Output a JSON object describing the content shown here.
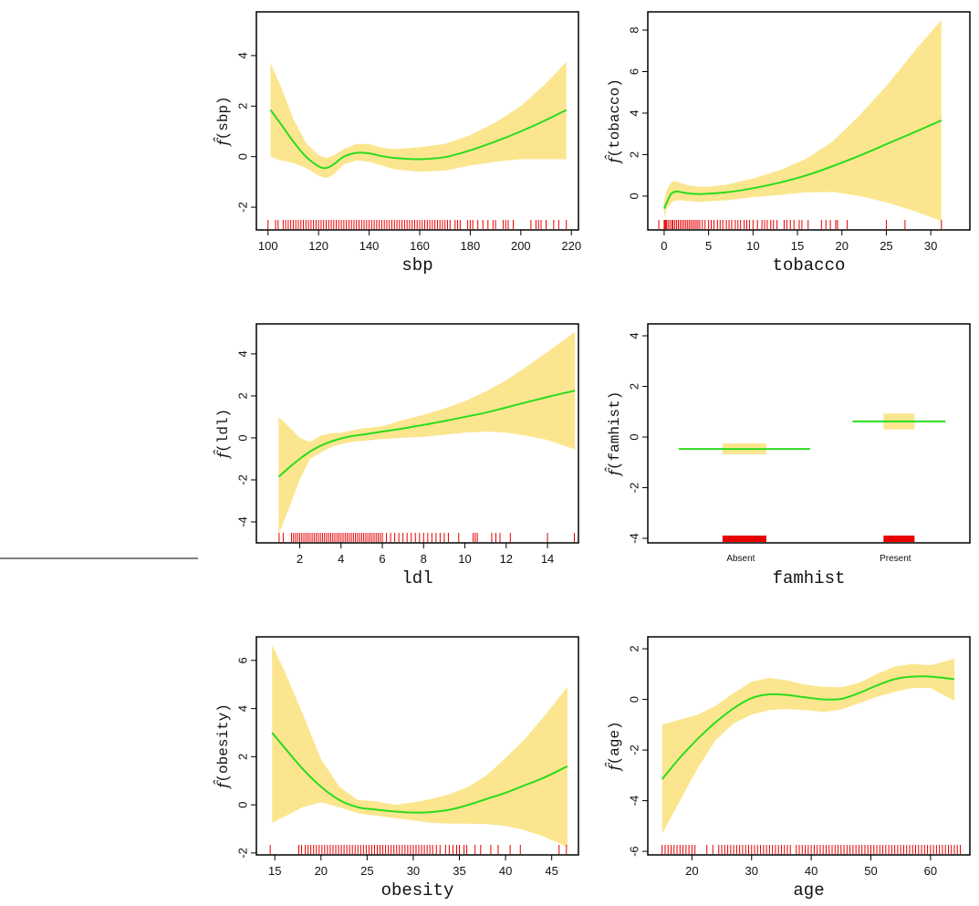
{
  "figure": {
    "divider_visible": true
  },
  "colors": {
    "band": "#FBE68F",
    "curve": "#2BDB1E",
    "rug": "#E80000",
    "frame": "#000000"
  },
  "chart_data": [
    {
      "id": "sbp",
      "type": "line",
      "title": "",
      "xlabel": "sbp",
      "ylabel_var": "sbp",
      "ylabel": "f̂(sbp)",
      "xlim": [
        95.4,
        222.8
      ],
      "ylim": [
        -2.9,
        5.73
      ],
      "xticks": [
        100,
        120,
        140,
        160,
        180,
        200,
        220
      ],
      "yticks": [
        -2,
        0,
        2,
        4
      ],
      "x": [
        101,
        105,
        110,
        115,
        120,
        123,
        126,
        130,
        135,
        140,
        145,
        150,
        160,
        170,
        180,
        190,
        200,
        210,
        218
      ],
      "fit": [
        1.85,
        1.3,
        0.6,
        0.0,
        -0.38,
        -0.45,
        -0.3,
        0.0,
        0.15,
        0.13,
        0.02,
        -0.05,
        -0.1,
        -0.02,
        0.25,
        0.6,
        1.0,
        1.45,
        1.85
      ],
      "lower": [
        0.0,
        -0.15,
        -0.25,
        -0.45,
        -0.75,
        -0.85,
        -0.7,
        -0.3,
        -0.15,
        -0.2,
        -0.35,
        -0.5,
        -0.6,
        -0.55,
        -0.35,
        -0.2,
        -0.1,
        -0.1,
        -0.1
      ],
      "upper": [
        3.7,
        2.8,
        1.5,
        0.55,
        0.05,
        -0.05,
        0.05,
        0.3,
        0.5,
        0.5,
        0.35,
        0.3,
        0.38,
        0.5,
        0.85,
        1.35,
        2.0,
        2.9,
        3.75
      ],
      "rug": [
        100,
        103,
        104,
        106,
        107,
        108,
        109,
        110,
        111,
        112,
        113,
        114,
        115,
        116,
        117,
        118,
        119,
        120,
        121,
        122,
        123,
        124,
        125,
        126,
        127,
        128,
        129,
        130,
        131,
        132,
        133,
        134,
        135,
        136,
        137,
        138,
        139,
        140,
        141,
        142,
        143,
        144,
        145,
        146,
        147,
        148,
        149,
        150,
        151,
        152,
        153,
        154,
        155,
        156,
        157,
        158,
        159,
        160,
        161,
        162,
        163,
        164,
        165,
        166,
        167,
        168,
        169,
        170,
        171,
        172,
        174,
        175,
        176,
        179,
        180,
        181,
        183,
        185,
        187,
        189,
        190,
        193,
        194,
        195,
        197,
        204,
        206,
        207,
        208,
        210,
        213,
        215,
        218
      ]
    },
    {
      "id": "tobacco",
      "type": "line",
      "title": "",
      "xlabel": "tobacco",
      "ylabel_var": "tobacco",
      "ylabel": "f̂(tobacco)",
      "xlim": [
        -1.84,
        34.4
      ],
      "ylim": [
        -1.63,
        8.88
      ],
      "xticks": [
        0,
        5,
        10,
        15,
        20,
        25,
        30
      ],
      "yticks": [
        0,
        2,
        4,
        6,
        8
      ],
      "x": [
        0,
        0.3,
        0.7,
        1.0,
        1.5,
        2,
        3,
        4,
        5,
        7,
        10,
        13,
        16,
        19,
        22,
        25,
        28,
        31.2
      ],
      "fit": [
        -0.6,
        -0.3,
        0.05,
        0.18,
        0.22,
        0.18,
        0.12,
        0.1,
        0.12,
        0.18,
        0.38,
        0.65,
        1.0,
        1.45,
        1.95,
        2.5,
        3.05,
        3.65
      ],
      "lower": [
        -1.05,
        -0.6,
        -0.4,
        -0.25,
        -0.2,
        -0.2,
        -0.25,
        -0.28,
        -0.25,
        -0.2,
        -0.05,
        0.05,
        0.18,
        0.2,
        0.0,
        -0.3,
        -0.7,
        -1.2
      ],
      "upper": [
        -0.2,
        0.3,
        0.6,
        0.72,
        0.7,
        0.6,
        0.5,
        0.45,
        0.45,
        0.55,
        0.85,
        1.25,
        1.8,
        2.65,
        3.9,
        5.3,
        6.9,
        8.5
      ],
      "rug": [
        -0.6,
        0,
        0.1,
        0.2,
        0.3,
        0.5,
        0.7,
        0.9,
        1.0,
        1.2,
        1.4,
        1.6,
        1.8,
        2.0,
        2.2,
        2.4,
        2.6,
        2.8,
        3.0,
        3.2,
        3.4,
        3.6,
        3.8,
        4.0,
        4.3,
        4.6,
        5.0,
        5.3,
        5.6,
        6.0,
        6.3,
        6.6,
        7.0,
        7.3,
        7.6,
        8.0,
        8.3,
        8.6,
        9.0,
        9.3,
        9.6,
        10.0,
        10.5,
        11.0,
        11.3,
        11.6,
        12.0,
        12.3,
        12.7,
        13.5,
        13.8,
        14.2,
        14.6,
        15.2,
        15.5,
        16.2,
        17.7,
        18.2,
        18.7,
        19.3,
        19.5,
        20.6,
        25.0,
        27.1,
        31.2
      ]
    },
    {
      "id": "ldl",
      "type": "line",
      "title": "",
      "xlabel": "ldl",
      "ylabel_var": "ldl",
      "ylabel": "f̂(ldl)",
      "xlim": [
        -0.1,
        15.5
      ],
      "ylim": [
        -5.0,
        5.43
      ],
      "xticks": [
        2,
        4,
        6,
        8,
        10,
        12,
        14
      ],
      "yticks": [
        -4,
        -2,
        0,
        2,
        4
      ],
      "x": [
        0.98,
        1.5,
        2.0,
        2.5,
        3.0,
        3.5,
        4.0,
        4.5,
        5.0,
        6.0,
        7.0,
        8.0,
        9.0,
        10.0,
        11.0,
        12.0,
        13.0,
        14.0,
        15.33
      ],
      "fit": [
        -1.85,
        -1.4,
        -1.0,
        -0.65,
        -0.38,
        -0.18,
        -0.03,
        0.08,
        0.15,
        0.3,
        0.45,
        0.62,
        0.8,
        1.0,
        1.2,
        1.45,
        1.7,
        1.95,
        2.25
      ],
      "lower": [
        -4.6,
        -3.3,
        -2.0,
        -1.0,
        -0.7,
        -0.45,
        -0.3,
        -0.2,
        -0.15,
        -0.05,
        0.0,
        0.05,
        0.15,
        0.25,
        0.3,
        0.25,
        0.1,
        -0.1,
        -0.55
      ],
      "upper": [
        1.0,
        0.5,
        0.0,
        -0.2,
        0.1,
        0.22,
        0.25,
        0.35,
        0.45,
        0.55,
        0.85,
        1.1,
        1.4,
        1.75,
        2.2,
        2.75,
        3.4,
        4.1,
        5.05
      ],
      "rug": [
        1.0,
        1.2,
        1.6,
        1.7,
        1.8,
        1.9,
        2.0,
        2.1,
        2.2,
        2.3,
        2.4,
        2.5,
        2.6,
        2.7,
        2.8,
        2.9,
        3.0,
        3.1,
        3.2,
        3.3,
        3.4,
        3.5,
        3.6,
        3.7,
        3.8,
        3.9,
        4.0,
        4.1,
        4.2,
        4.3,
        4.4,
        4.5,
        4.6,
        4.7,
        4.8,
        4.9,
        5.0,
        5.1,
        5.2,
        5.3,
        5.4,
        5.5,
        5.6,
        5.7,
        5.8,
        5.9,
        6.0,
        6.2,
        6.4,
        6.6,
        6.8,
        7.0,
        7.2,
        7.4,
        7.6,
        7.8,
        8.0,
        8.2,
        8.4,
        8.6,
        8.8,
        9.0,
        9.2,
        9.7,
        10.4,
        10.5,
        10.6,
        11.3,
        11.5,
        11.7,
        12.2,
        14.0,
        15.3
      ]
    },
    {
      "id": "famhist",
      "type": "bar",
      "title": "",
      "xlabel": "famhist",
      "ylabel_var": "famhist",
      "ylabel": "f̂(famhist)",
      "ylim": [
        -4.18,
        4.47
      ],
      "yticks": [
        -4,
        -2,
        0,
        2,
        4
      ],
      "categories": [
        "Absent",
        "Present"
      ],
      "fit": [
        -0.47,
        0.62
      ],
      "lower": [
        -0.68,
        0.3
      ],
      "upper": [
        -0.25,
        0.93
      ],
      "rug_level": -4
    },
    {
      "id": "obesity",
      "type": "line",
      "title": "",
      "xlabel": "obesity",
      "ylabel_var": "obesity",
      "ylabel": "f̂(obesity)",
      "xlim": [
        13.0,
        47.9
      ],
      "ylim": [
        -2.08,
        6.98
      ],
      "xticks": [
        15,
        20,
        25,
        30,
        35,
        40,
        45
      ],
      "yticks": [
        -2,
        0,
        2,
        4,
        6
      ],
      "x": [
        14.7,
        16,
        18,
        20,
        22,
        24,
        26,
        28,
        30,
        32,
        34,
        36,
        38,
        40,
        42,
        44,
        46.7
      ],
      "fit": [
        3.0,
        2.4,
        1.5,
        0.75,
        0.2,
        -0.1,
        -0.2,
        -0.28,
        -0.32,
        -0.3,
        -0.2,
        0.0,
        0.25,
        0.5,
        0.8,
        1.1,
        1.6
      ],
      "lower": [
        -0.75,
        -0.5,
        -0.1,
        0.1,
        -0.1,
        -0.35,
        -0.45,
        -0.55,
        -0.65,
        -0.75,
        -0.78,
        -0.78,
        -0.8,
        -0.88,
        -1.05,
        -1.3,
        -1.75
      ],
      "upper": [
        6.65,
        5.6,
        3.8,
        1.9,
        0.75,
        0.2,
        0.15,
        0.0,
        0.1,
        0.25,
        0.45,
        0.75,
        1.25,
        1.95,
        2.7,
        3.6,
        4.9
      ],
      "rug": [
        14.5,
        17.6,
        17.9,
        18.3,
        18.6,
        18.9,
        19.2,
        19.5,
        19.8,
        20.1,
        20.4,
        20.7,
        21.0,
        21.3,
        21.6,
        21.9,
        22.2,
        22.5,
        22.8,
        23.1,
        23.4,
        23.7,
        24.0,
        24.3,
        24.6,
        24.9,
        25.2,
        25.5,
        25.8,
        26.1,
        26.4,
        26.7,
        27.0,
        27.3,
        27.6,
        27.9,
        28.2,
        28.5,
        28.8,
        29.1,
        29.4,
        29.7,
        30.0,
        30.3,
        30.6,
        30.9,
        31.2,
        31.5,
        31.8,
        32.1,
        32.5,
        32.9,
        33.5,
        33.9,
        34.3,
        34.7,
        35.0,
        35.5,
        35.8,
        36.7,
        37.3,
        38.4,
        39.2,
        40.5,
        41.6,
        45.8,
        46.6
      ]
    },
    {
      "id": "age",
      "type": "line",
      "title": "",
      "xlabel": "age",
      "ylabel_var": "age",
      "ylabel": "f̂(age)",
      "xlim": [
        12.6,
        66.6
      ],
      "ylim": [
        -6.14,
        2.47
      ],
      "xticks": [
        20,
        30,
        40,
        50,
        60
      ],
      "yticks": [
        -6,
        -4,
        -2,
        0,
        2
      ],
      "x": [
        15,
        18,
        21,
        24,
        27,
        30,
        33,
        36,
        39,
        42,
        45,
        48,
        51,
        54,
        57,
        60,
        64
      ],
      "fit": [
        -3.15,
        -2.3,
        -1.55,
        -0.9,
        -0.35,
        0.05,
        0.2,
        0.17,
        0.08,
        0.0,
        0.02,
        0.25,
        0.55,
        0.8,
        0.9,
        0.9,
        0.8
      ],
      "lower": [
        -5.3,
        -4.0,
        -2.7,
        -1.6,
        -0.95,
        -0.6,
        -0.42,
        -0.38,
        -0.42,
        -0.5,
        -0.4,
        -0.15,
        0.1,
        0.3,
        0.45,
        0.45,
        -0.05
      ],
      "upper": [
        -1.0,
        -0.8,
        -0.6,
        -0.25,
        0.25,
        0.7,
        0.85,
        0.75,
        0.58,
        0.5,
        0.48,
        0.65,
        1.0,
        1.3,
        1.4,
        1.35,
        1.6
      ],
      "rug": [
        15,
        15.5,
        16,
        16.5,
        17,
        17.5,
        18,
        18.5,
        19,
        19.5,
        20,
        20.5,
        22.5,
        23.5,
        24.5,
        25,
        25.5,
        26,
        26.5,
        27,
        27.5,
        28,
        28.5,
        29,
        29.5,
        30,
        30.5,
        31,
        31.5,
        32,
        32.5,
        33,
        33.5,
        34,
        34.5,
        35,
        35.5,
        36,
        36.5,
        37.5,
        38,
        38.5,
        39,
        39.5,
        40,
        40.5,
        41,
        41.5,
        42,
        42.5,
        43,
        43.5,
        44,
        44.5,
        45,
        45.5,
        46,
        46.5,
        47,
        47.5,
        48,
        48.5,
        49,
        49.5,
        50,
        50.5,
        51,
        51.5,
        52,
        52.5,
        53,
        53.5,
        54,
        54.5,
        55,
        55.5,
        56,
        56.5,
        57,
        57.5,
        58,
        58.5,
        59,
        59.5,
        60,
        60.5,
        61,
        61.5,
        62,
        62.5,
        63,
        63.5,
        64,
        64.5,
        65
      ]
    }
  ]
}
